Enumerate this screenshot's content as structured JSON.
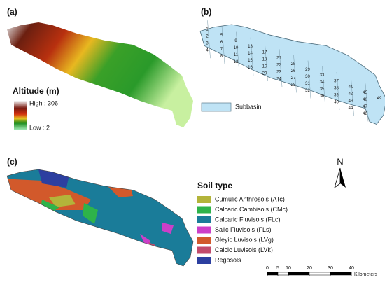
{
  "panels": [
    {
      "label": "(a)",
      "legend": {
        "title": "Altitude (m)",
        "high": "High : 306",
        "low": "Low : 2"
      }
    },
    {
      "label": "(b)",
      "legend": {
        "item": "Subbasin"
      },
      "subbasins": [
        "1",
        "2",
        "3",
        "4",
        "5",
        "6",
        "7",
        "8",
        "9",
        "10",
        "11",
        "12",
        "13",
        "14",
        "15",
        "16",
        "17",
        "18",
        "19",
        "20",
        "21",
        "22",
        "23",
        "24",
        "25",
        "26",
        "27",
        "28",
        "29",
        "30",
        "31",
        "32",
        "33",
        "34",
        "35",
        "36",
        "37",
        "38",
        "39",
        "40",
        "41",
        "42",
        "43",
        "44",
        "45",
        "46",
        "47",
        "48",
        "49"
      ]
    },
    {
      "label": "(c)",
      "legend": {
        "title": "Soil type",
        "items": [
          {
            "name": "Cumulic Anthrosols (ATc)",
            "color": "#b3b43a"
          },
          {
            "name": "Calcaric Cambisols (CMc)",
            "color": "#2eb34a"
          },
          {
            "name": "Calcaric Fluvisols (FLc)",
            "color": "#1a7c99"
          },
          {
            "name": "Salic Fluvisols (FLs)",
            "color": "#cc3fc8"
          },
          {
            "name": "Gleyic Luvisols (LVg)",
            "color": "#d2592b"
          },
          {
            "name": "Calcic Luvisols (LVk)",
            "color": "#c24b6c"
          },
          {
            "name": "Regosols",
            "color": "#2c3fa0"
          }
        ]
      }
    }
  ],
  "north": "N",
  "scale_bar": {
    "ticks": [
      0,
      5,
      10,
      20,
      30,
      40
    ],
    "unit": "Kilometers"
  }
}
